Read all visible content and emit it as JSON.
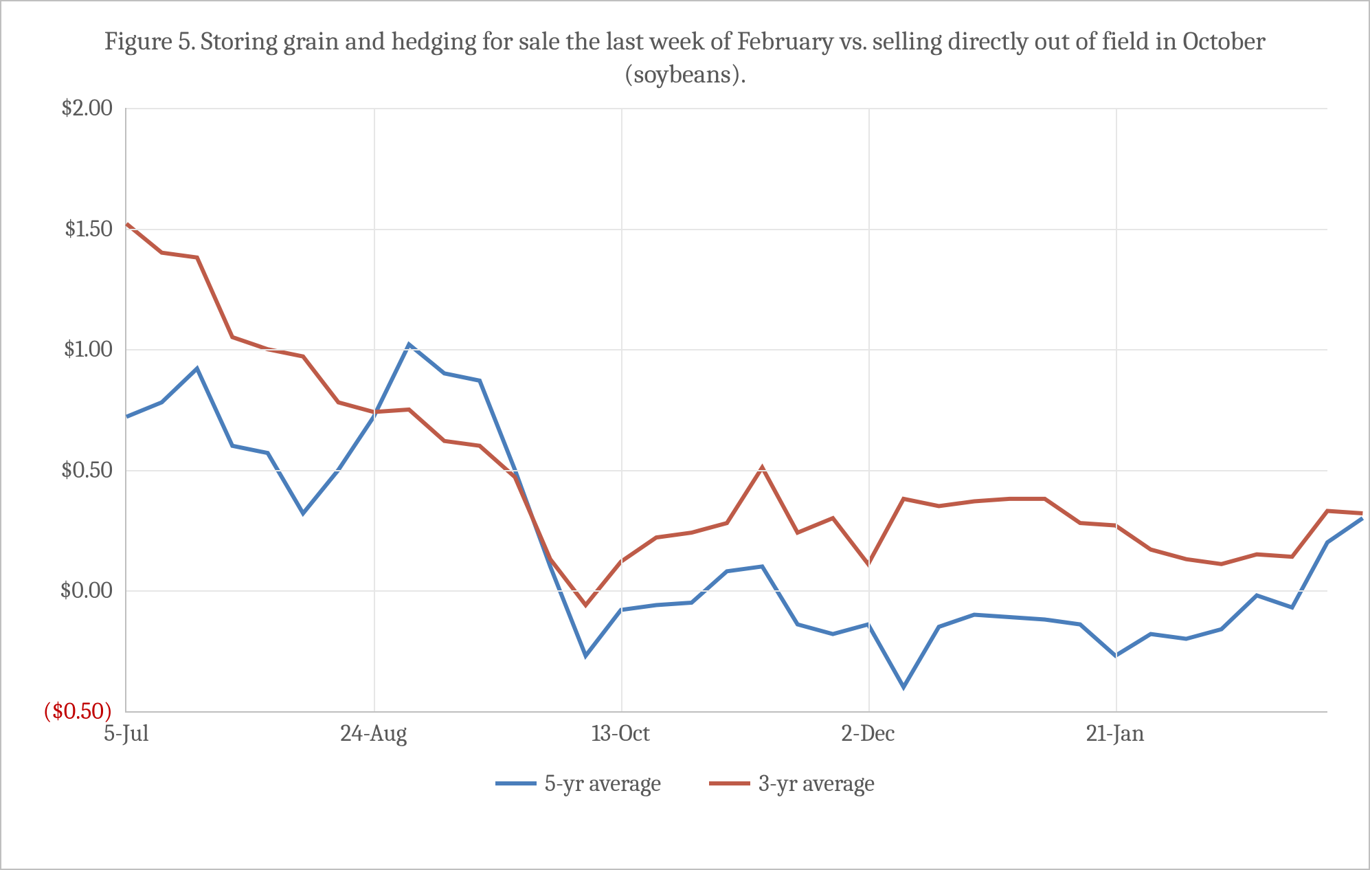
{
  "chart": {
    "type": "line",
    "title": "Figure 5. Storing grain and hedging for sale the last week of February vs. selling directly out of field in October (soybeans).",
    "title_fontsize": 38,
    "title_color": "#595959",
    "background_color": "#ffffff",
    "border_color": "#bfbfbf",
    "grid_color": "#e6e6e6",
    "axis_color": "#bfbfbf",
    "x_axis": {
      "min": 0,
      "max": 34,
      "ticks": [
        0,
        7,
        14,
        21,
        28
      ],
      "tick_labels": [
        "5-Jul",
        "24-Aug",
        "13-Oct",
        "2-Dec",
        "21-Jan"
      ],
      "label_fontsize": 34,
      "label_color": "#595959"
    },
    "y_axis": {
      "min": -0.5,
      "max": 2.0,
      "ticks": [
        -0.5,
        0.0,
        0.5,
        1.0,
        1.5,
        2.0
      ],
      "tick_labels": [
        "($0.50)",
        "$0.00",
        "$0.50",
        "$1.00",
        "$1.50",
        "$2.00"
      ],
      "label_fontsize": 34,
      "label_color": "#595959",
      "negative_color": "#c00000"
    },
    "series": [
      {
        "name": "5-yr average",
        "color": "#4a7ebb",
        "line_width": 6,
        "values": [
          0.72,
          0.78,
          0.92,
          0.6,
          0.57,
          0.32,
          0.5,
          0.72,
          1.02,
          0.9,
          0.87,
          0.5,
          0.1,
          -0.27,
          -0.08,
          -0.06,
          -0.05,
          0.08,
          0.1,
          -0.14,
          -0.18,
          -0.14,
          -0.4,
          -0.15,
          -0.1,
          -0.11,
          -0.12,
          -0.14,
          -0.27,
          -0.18,
          -0.2,
          -0.16,
          -0.02,
          -0.07,
          0.2,
          0.3
        ]
      },
      {
        "name": "3-yr average",
        "color": "#be5b48",
        "line_width": 6,
        "values": [
          1.52,
          1.4,
          1.38,
          1.05,
          1.0,
          0.97,
          0.78,
          0.74,
          0.75,
          0.62,
          0.6,
          0.47,
          0.13,
          -0.06,
          0.12,
          0.22,
          0.24,
          0.28,
          0.51,
          0.24,
          0.3,
          0.11,
          0.38,
          0.35,
          0.37,
          0.38,
          0.38,
          0.28,
          0.27,
          0.17,
          0.13,
          0.11,
          0.15,
          0.14,
          0.33,
          0.32
        ]
      }
    ],
    "legend": {
      "position": "bottom",
      "fontsize": 34,
      "color": "#595959"
    }
  }
}
